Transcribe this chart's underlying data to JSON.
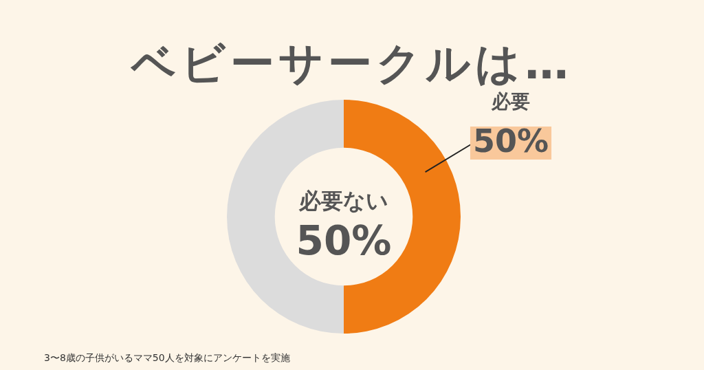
{
  "chart_data": {
    "type": "donut",
    "title": "ベビーサークルは…",
    "categories": [
      "必要",
      "必要ない"
    ],
    "values": [
      50,
      50
    ],
    "colors": [
      "#f07c14",
      "#dcdcdc"
    ],
    "value_labels": [
      "50%",
      "50%"
    ],
    "legend": false,
    "annotations": [
      "3〜8歳の子供がいるママ50人を対象にアンケートを実施"
    ]
  }
}
